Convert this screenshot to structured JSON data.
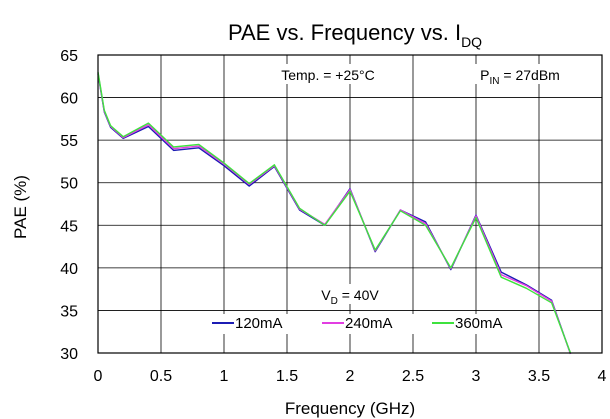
{
  "chart_data": {
    "type": "line",
    "title": {
      "main": "PAE vs. Frequency vs. I",
      "sub": "DQ"
    },
    "xlabel": "Frequency (GHz)",
    "ylabel": "PAE (%)",
    "xlim": [
      0,
      4
    ],
    "ylim": [
      30,
      65
    ],
    "xticks": [
      0,
      0.5,
      1,
      1.5,
      2,
      2.5,
      3,
      3.5,
      4
    ],
    "xtick_labels": [
      "0",
      "0.5",
      "1",
      "1.5",
      "2",
      "2.5",
      "3",
      "3.5",
      "4"
    ],
    "yticks": [
      30,
      35,
      40,
      45,
      50,
      55,
      60,
      65
    ],
    "ytick_labels": [
      "30",
      "35",
      "40",
      "45",
      "50",
      "55",
      "60",
      "65"
    ],
    "grid": true,
    "legend_position": "bottom-center",
    "annotations": {
      "temp": "Temp. = +25°C",
      "pin_main": "P",
      "pin_sub": "IN",
      "pin_rest": " = 27dBm",
      "vd_main": "V",
      "vd_sub": "D",
      "vd_rest": " = 40V"
    },
    "x": [
      0,
      0.05,
      0.1,
      0.2,
      0.4,
      0.6,
      0.8,
      1.0,
      1.2,
      1.4,
      1.6,
      1.8,
      2.0,
      2.2,
      2.4,
      2.6,
      2.8,
      3.0,
      3.2,
      3.4,
      3.6,
      3.75
    ],
    "series": [
      {
        "name": "120mA",
        "color": "#1c1cb4",
        "values": [
          62.8,
          58.3,
          56.5,
          55.2,
          56.6,
          53.8,
          54.1,
          52.0,
          49.6,
          51.9,
          46.8,
          45.0,
          49.3,
          41.9,
          46.8,
          45.4,
          39.8,
          46.2,
          39.5,
          38.0,
          36.2,
          29.9
        ]
      },
      {
        "name": "240mA",
        "color": "#e23ee2",
        "values": [
          62.9,
          58.4,
          56.6,
          55.3,
          56.8,
          54.0,
          54.3,
          52.2,
          49.8,
          52.0,
          46.9,
          45.1,
          49.2,
          42.0,
          46.8,
          45.2,
          39.9,
          46.1,
          39.2,
          37.9,
          36.1,
          29.9
        ]
      },
      {
        "name": "360mA",
        "color": "#3ee23e",
        "values": [
          63.0,
          58.5,
          56.7,
          55.4,
          57.0,
          54.2,
          54.5,
          52.3,
          49.9,
          52.1,
          47.0,
          45.0,
          49.0,
          42.1,
          46.7,
          45.0,
          40.0,
          45.9,
          38.9,
          37.6,
          35.9,
          30.0
        ]
      }
    ]
  }
}
